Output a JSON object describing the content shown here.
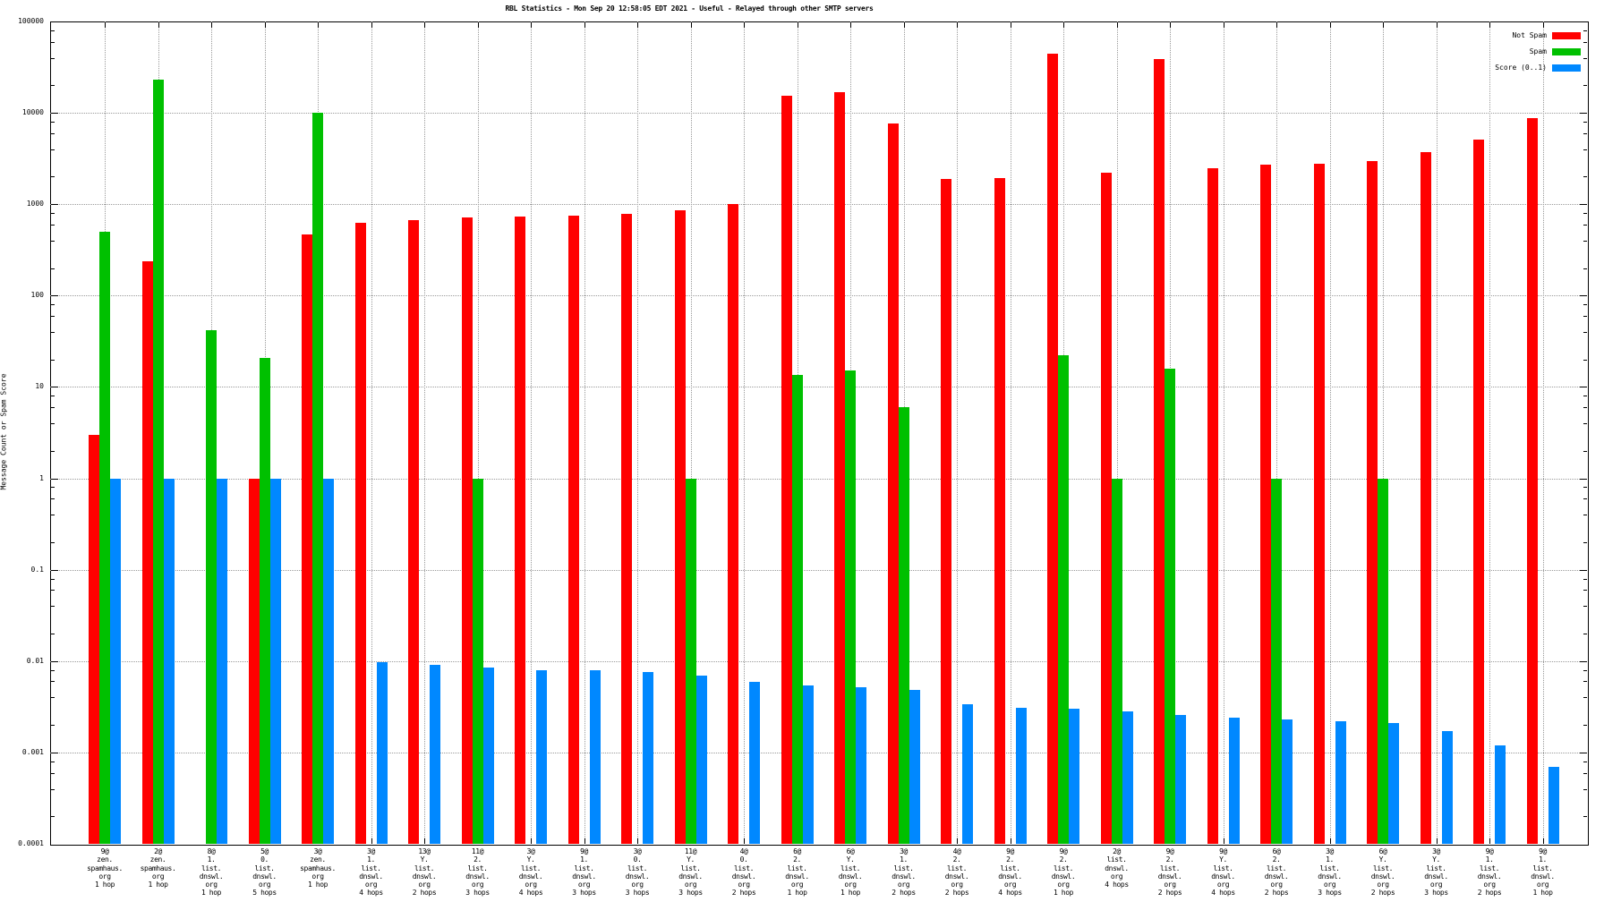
{
  "chart_data": {
    "type": "bar",
    "title": "RBL Statistics - Mon Sep 20 12:58:05 EDT 2021 - Useful - Relayed through other SMTP servers",
    "ylabel": "Message Count or Spam Score",
    "scale_y": "log",
    "ylim": [
      0.0001,
      100000
    ],
    "grid": true,
    "legend_position": "top-right-inside",
    "y_ticks": [
      "100000",
      "10000",
      "1000",
      "100",
      "10",
      "1",
      "0.1",
      "0.01",
      "0.001",
      "0.0001"
    ],
    "colors": {
      "not_spam": "#ff0000",
      "spam": "#00c000",
      "score": "#0088ff"
    },
    "categories": [
      [
        "9@",
        "zen.",
        "spamhaus.",
        "org",
        "1 hop"
      ],
      [
        "2@",
        "zen.",
        "spamhaus.",
        "org",
        "1 hop"
      ],
      [
        "8@",
        "1.",
        "list.",
        "dnswl.",
        "org",
        "1 hop"
      ],
      [
        "5@",
        "0.",
        "list.",
        "dnswl.",
        "org",
        "5 hops"
      ],
      [
        "3@",
        "zen.",
        "spamhaus.",
        "org",
        "1 hop"
      ],
      [
        "3@",
        "1.",
        "list.",
        "dnswl.",
        "org",
        "4 hops"
      ],
      [
        "13@",
        "Y.",
        "list.",
        "dnswl.",
        "org",
        "2 hops"
      ],
      [
        "11@",
        "2.",
        "list.",
        "dnswl.",
        "org",
        "3 hops"
      ],
      [
        "3@",
        "Y.",
        "list.",
        "dnswl.",
        "org",
        "4 hops"
      ],
      [
        "9@",
        "1.",
        "list.",
        "dnswl.",
        "org",
        "3 hops"
      ],
      [
        "3@",
        "0.",
        "list.",
        "dnswl.",
        "org",
        "3 hops"
      ],
      [
        "11@",
        "Y.",
        "list.",
        "dnswl.",
        "org",
        "3 hops"
      ],
      [
        "4@",
        "0.",
        "list.",
        "dnswl.",
        "org",
        "2 hops"
      ],
      [
        "6@",
        "2.",
        "list.",
        "dnswl.",
        "org",
        "1 hop"
      ],
      [
        "6@",
        "Y.",
        "list.",
        "dnswl.",
        "org",
        "1 hop"
      ],
      [
        "3@",
        "1.",
        "list.",
        "dnswl.",
        "org",
        "2 hops"
      ],
      [
        "4@",
        "2.",
        "list.",
        "dnswl.",
        "org",
        "2 hops"
      ],
      [
        "9@",
        "2.",
        "list.",
        "dnswl.",
        "org",
        "4 hops"
      ],
      [
        "9@",
        "2.",
        "list.",
        "dnswl.",
        "org",
        "1 hop"
      ],
      [
        "2@",
        "list.",
        "dnswl.",
        "org",
        "4 hops"
      ],
      [
        "9@",
        "2.",
        "list.",
        "dnswl.",
        "org",
        "2 hops"
      ],
      [
        "9@",
        "Y.",
        "list.",
        "dnswl.",
        "org",
        "4 hops"
      ],
      [
        "6@",
        "2.",
        "list.",
        "dnswl.",
        "org",
        "2 hops"
      ],
      [
        "3@",
        "1.",
        "list.",
        "dnswl.",
        "org",
        "3 hops"
      ],
      [
        "6@",
        "Y.",
        "list.",
        "dnswl.",
        "org",
        "2 hops"
      ],
      [
        "3@",
        "Y.",
        "list.",
        "dnswl.",
        "org",
        "3 hops"
      ],
      [
        "9@",
        "1.",
        "list.",
        "dnswl.",
        "org",
        "2 hops"
      ],
      [
        "9@",
        "1.",
        "list.",
        "dnswl.",
        "org",
        "1 hop"
      ]
    ],
    "series": [
      {
        "name": "Not Spam",
        "color": "#ff0000",
        "values": [
          3,
          240,
          null,
          1,
          470,
          620,
          670,
          710,
          740,
          750,
          790,
          860,
          1000,
          15500,
          17000,
          7700,
          1900,
          1950,
          44000,
          2200,
          39000,
          2500,
          2700,
          2800,
          3000,
          3700,
          5100,
          8700
        ]
      },
      {
        "name": "Spam",
        "color": "#00c000",
        "values": [
          500,
          23000,
          42,
          21,
          10000,
          null,
          null,
          1,
          null,
          null,
          null,
          1,
          null,
          13.5,
          15,
          6,
          null,
          null,
          22,
          1,
          16,
          null,
          1,
          null,
          1,
          null,
          null,
          null
        ]
      },
      {
        "name": "Score (0..1)",
        "color": "#0088ff",
        "values": [
          1,
          1,
          1,
          1,
          1,
          0.0098,
          0.009,
          0.0085,
          0.008,
          0.008,
          0.0076,
          0.007,
          0.0059,
          0.0054,
          0.0052,
          0.0048,
          0.0034,
          0.0031,
          0.003,
          0.0028,
          0.0026,
          0.0024,
          0.0023,
          0.0022,
          0.0021,
          0.0017,
          0.0012,
          0.0007
        ]
      }
    ]
  }
}
